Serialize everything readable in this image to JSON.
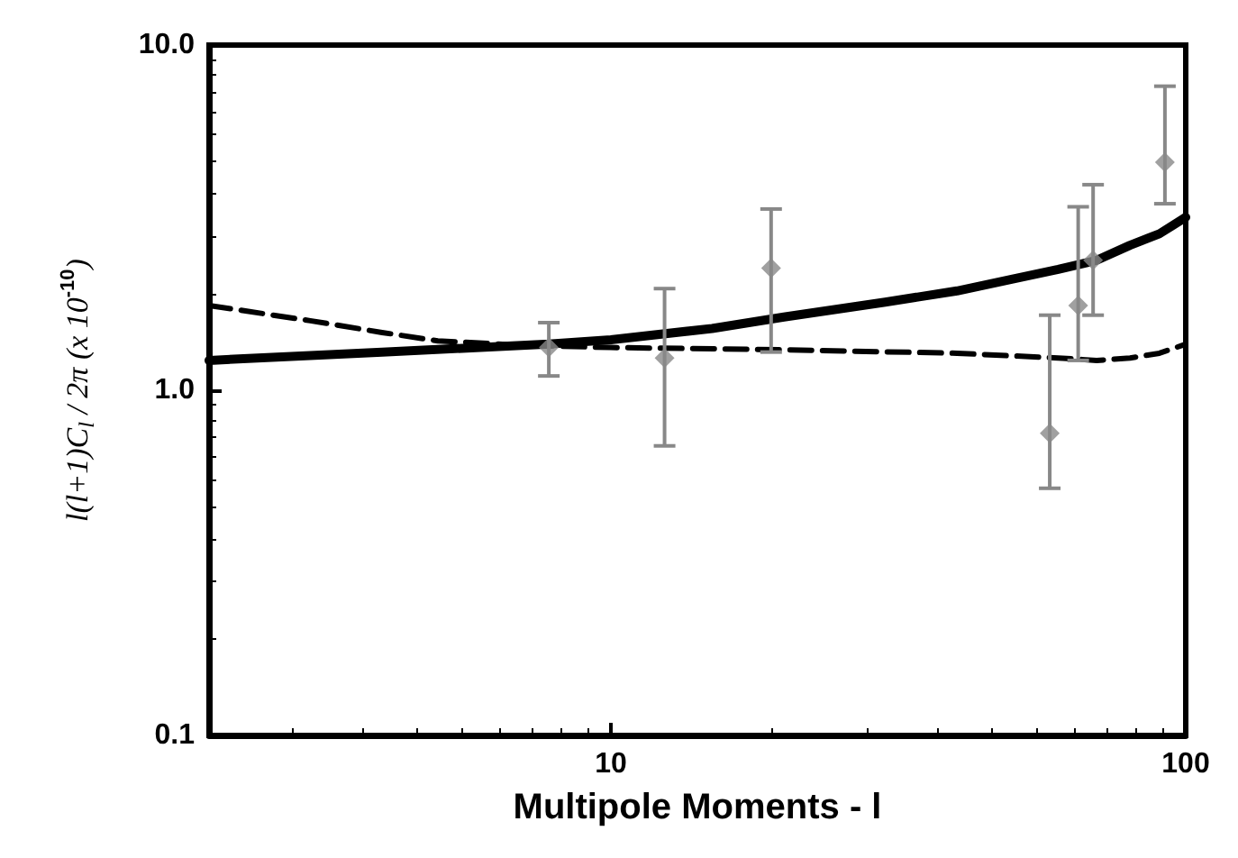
{
  "chart_data": {
    "type": "scatter",
    "xlabel": "Multipole Moments - l",
    "ylabel": "l(l+1)C$_{l}$ / 2π (x 10$^{-10}$)",
    "log": "xy",
    "xlim": [
      2,
      100
    ],
    "xticks": [
      10,
      100
    ],
    "ylim": [
      0.1,
      10
    ],
    "yticks": [
      {
        "value": 0.1,
        "label": "0.1"
      },
      {
        "value": 1,
        "label": "1.0"
      },
      {
        "value": 10,
        "label": "10.0"
      }
    ],
    "grid": false,
    "series": [
      {
        "type": "line",
        "color": "#000000",
        "line_style": "solid",
        "marker": "none",
        "x": [
          2,
          4,
          7.8,
          10,
          15,
          20,
          30,
          40,
          50,
          60,
          70,
          80,
          90,
          100
        ],
        "values": [
          1.22,
          1.29,
          1.36,
          1.4,
          1.51,
          1.63,
          1.8,
          1.94,
          2.1,
          2.24,
          2.38,
          2.63,
          2.84,
          3.17
        ]
      },
      {
        "type": "line",
        "color": "#000000",
        "line_style": "dashed",
        "marker": "none",
        "x": [
          2,
          3,
          4,
          5,
          7,
          10,
          20,
          40,
          60,
          70,
          80,
          90,
          100
        ],
        "values": [
          1.76,
          1.59,
          1.47,
          1.39,
          1.35,
          1.33,
          1.31,
          1.28,
          1.24,
          1.22,
          1.24,
          1.28,
          1.36
        ]
      },
      {
        "color": "#888888",
        "marker": "diamond",
        "x": [
          7.8,
          12.4,
          19,
          58,
          65,
          69,
          92
        ],
        "values": [
          1.33,
          1.24,
          2.26,
          0.75,
          1.76,
          2.38,
          4.58
        ],
        "errors": [
          [
            1.1,
            1.57
          ],
          [
            0.69,
            1.97
          ],
          [
            1.29,
            3.35
          ],
          [
            0.52,
            1.65
          ],
          [
            1.22,
            3.4
          ],
          [
            1.65,
            3.94
          ],
          [
            3.47,
            7.6
          ]
        ]
      }
    ]
  }
}
